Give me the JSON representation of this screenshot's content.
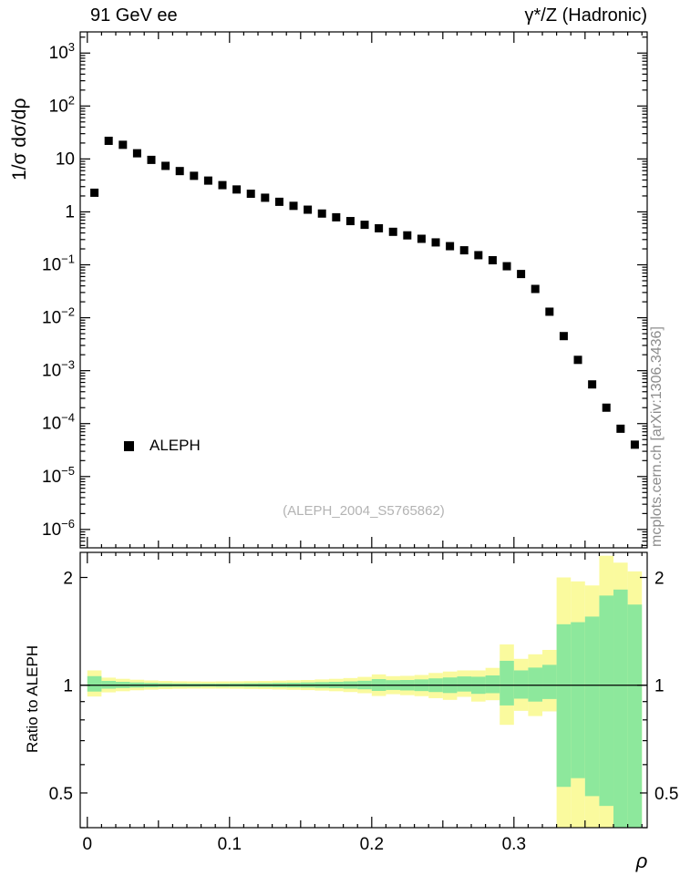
{
  "header": {
    "left": "91 GeV ee",
    "right": "γ*/Z (Hadronic)"
  },
  "side_text": "mcplots.cern.ch [arXiv:1306.3436]",
  "watermark": "(ALEPH_2004_S5765862)",
  "legend": {
    "label": "ALEPH",
    "marker": "black-filled-square"
  },
  "axes": {
    "x_label": "ρ",
    "main_y_label": "1/σ dσ/dρ",
    "ratio_y_label": "Ratio to ALEPH"
  },
  "colors": {
    "yellow_band": "#fafa9e",
    "green_band": "#8de89c",
    "marker": "#000000",
    "frame": "#000000",
    "watermark_gray": "#b3b3b3",
    "side_gray": "#8c8c8c"
  },
  "chart_data": [
    {
      "type": "scatter",
      "panel": "main",
      "title": "91 GeV ee — γ*/Z (Hadronic)",
      "xlabel": "ρ",
      "ylabel": "1/σ dσ/dρ",
      "xscale": "linear",
      "yscale": "log",
      "xlim": [
        -0.005,
        0.3937
      ],
      "ylim": [
        4.5e-07,
        2512
      ],
      "grid": false,
      "legend_position": "middle-left",
      "x_major_ticks": [
        0,
        0.1,
        0.2,
        0.3
      ],
      "x_tick_labels": [
        "0",
        "0.1",
        "0.2",
        "0.3"
      ],
      "y_ticks": [
        {
          "v": 1000,
          "label": "10^3"
        },
        {
          "v": 100,
          "label": "10^2"
        },
        {
          "v": 10,
          "label": "10"
        },
        {
          "v": 1,
          "label": "1"
        },
        {
          "v": 0.1,
          "label": "10^-1"
        },
        {
          "v": 0.01,
          "label": "10^-2"
        },
        {
          "v": 0.001,
          "label": "10^-3"
        },
        {
          "v": 0.0001,
          "label": "10^-4"
        },
        {
          "v": 1e-05,
          "label": "10^-5"
        },
        {
          "v": 1e-06,
          "label": "10^-6"
        }
      ],
      "series": [
        {
          "name": "ALEPH",
          "marker": "filled-square",
          "color": "#000000",
          "x": [
            0.005,
            0.015,
            0.025,
            0.035,
            0.045,
            0.055,
            0.065,
            0.075,
            0.085,
            0.095,
            0.105,
            0.115,
            0.125,
            0.135,
            0.145,
            0.155,
            0.165,
            0.175,
            0.185,
            0.195,
            0.205,
            0.215,
            0.225,
            0.235,
            0.245,
            0.255,
            0.265,
            0.275,
            0.285,
            0.295,
            0.305,
            0.315,
            0.325,
            0.335,
            0.345,
            0.355,
            0.365,
            0.375,
            0.385
          ],
          "y": [
            2.3,
            22,
            18.5,
            12.8,
            9.6,
            7.4,
            5.9,
            4.8,
            3.9,
            3.2,
            2.65,
            2.2,
            1.85,
            1.55,
            1.3,
            1.1,
            0.93,
            0.79,
            0.67,
            0.57,
            0.49,
            0.42,
            0.36,
            0.31,
            0.265,
            0.225,
            0.188,
            0.152,
            0.122,
            0.094,
            0.067,
            0.035,
            0.013,
            0.0045,
            0.0016,
            0.00055,
            0.0002,
            8e-05,
            4e-05
          ]
        }
      ]
    },
    {
      "type": "band",
      "panel": "ratio",
      "ylabel": "Ratio to ALEPH",
      "yscale": "log",
      "ylim": [
        0.4,
        2.35
      ],
      "reference_line": 1.0,
      "y_ticks": [
        {
          "v": 2,
          "label": "2"
        },
        {
          "v": 1,
          "label": "1"
        },
        {
          "v": 0.5,
          "label": "0.5"
        }
      ],
      "bin_start": 0.0,
      "bin_width": 0.01,
      "yellow_lo": [
        0.93,
        0.955,
        0.962,
        0.968,
        0.972,
        0.975,
        0.977,
        0.978,
        0.978,
        0.978,
        0.977,
        0.976,
        0.975,
        0.973,
        0.971,
        0.969,
        0.966,
        0.962,
        0.957,
        0.95,
        0.933,
        0.944,
        0.938,
        0.932,
        0.92,
        0.91,
        0.928,
        0.9,
        0.908,
        0.775,
        0.848,
        0.82,
        0.845,
        0.4,
        0.4,
        0.4,
        0.4,
        0.4,
        0.4
      ],
      "yellow_hi": [
        1.1,
        1.05,
        1.042,
        1.036,
        1.031,
        1.028,
        1.026,
        1.025,
        1.024,
        1.025,
        1.026,
        1.027,
        1.028,
        1.03,
        1.032,
        1.034,
        1.038,
        1.042,
        1.047,
        1.055,
        1.072,
        1.06,
        1.062,
        1.068,
        1.082,
        1.092,
        1.1,
        1.1,
        1.118,
        1.3,
        1.185,
        1.22,
        1.255,
        2.0,
        1.95,
        1.9,
        2.3,
        2.2,
        2.08
      ],
      "green_lo": [
        0.96,
        0.978,
        0.982,
        0.985,
        0.987,
        0.989,
        0.99,
        0.99,
        0.991,
        0.99,
        0.99,
        0.989,
        0.988,
        0.987,
        0.986,
        0.985,
        0.983,
        0.981,
        0.978,
        0.974,
        0.964,
        0.97,
        0.967,
        0.963,
        0.957,
        0.951,
        0.96,
        0.946,
        0.95,
        0.878,
        0.917,
        0.9,
        0.915,
        0.52,
        0.55,
        0.49,
        0.46,
        0.4,
        0.4
      ],
      "green_hi": [
        1.06,
        1.028,
        1.022,
        1.018,
        1.015,
        1.013,
        1.012,
        1.011,
        1.011,
        1.011,
        1.012,
        1.013,
        1.014,
        1.015,
        1.016,
        1.018,
        1.02,
        1.022,
        1.025,
        1.029,
        1.04,
        1.033,
        1.034,
        1.038,
        1.045,
        1.051,
        1.058,
        1.056,
        1.065,
        1.17,
        1.1,
        1.12,
        1.14,
        1.48,
        1.5,
        1.555,
        1.78,
        1.85,
        1.68
      ]
    }
  ]
}
